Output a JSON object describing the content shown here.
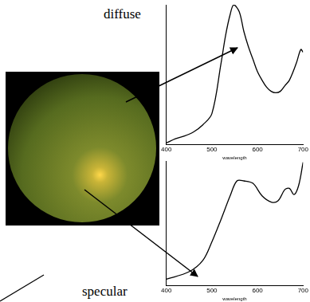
{
  "chart_data": [
    {
      "type": "line",
      "title": "diffuse",
      "x_label": "wavelength",
      "x": [
        400,
        420,
        440,
        460,
        480,
        500,
        520,
        530,
        540,
        548,
        560,
        570,
        580,
        590,
        600,
        610,
        620,
        630,
        640,
        650,
        660,
        670,
        685,
        695,
        700
      ],
      "values": [
        0.01,
        0.04,
        0.06,
        0.09,
        0.14,
        0.22,
        0.58,
        0.78,
        0.93,
        1.0,
        0.95,
        0.81,
        0.7,
        0.61,
        0.52,
        0.46,
        0.41,
        0.38,
        0.37,
        0.38,
        0.42,
        0.46,
        0.58,
        0.68,
        0.66
      ],
      "color": "#000000",
      "marker": "none",
      "xlim": [
        400,
        700
      ],
      "xticks": [
        400,
        500,
        600,
        700
      ],
      "ylim": [
        0,
        1
      ],
      "grid": false,
      "tick_labels": "x"
    },
    {
      "type": "line",
      "title": "specular",
      "x_label": "wavelength",
      "x": [
        400,
        450,
        480,
        500,
        520,
        540,
        555,
        570,
        590,
        610,
        630,
        645,
        660,
        670,
        680,
        690,
        700
      ],
      "values": [
        0.05,
        0.11,
        0.2,
        0.35,
        0.53,
        0.72,
        0.84,
        0.84,
        0.82,
        0.72,
        0.67,
        0.68,
        0.77,
        0.78,
        0.73,
        0.8,
        0.99
      ],
      "color": "#000000",
      "marker": "none",
      "xlim": [
        400,
        700
      ],
      "xticks": [
        400,
        500,
        600,
        700
      ],
      "ylim": [
        0,
        1
      ],
      "grid": false,
      "tick_labels": "x"
    }
  ]
}
